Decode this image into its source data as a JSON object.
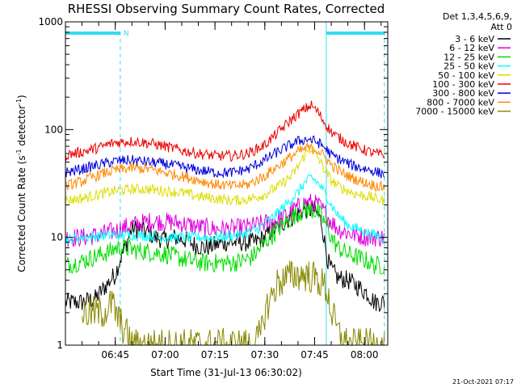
{
  "chart_data": {
    "type": "line",
    "title": "RHESSI Observing Summary Count Rates, Corrected",
    "xlabel": "Start Time (31-Jul-13 06:30:02)",
    "ylabel": "Corrected Count Rate (s⁻¹ detector⁻¹)",
    "ylabel_parts": [
      "Corrected Count Rate (s",
      "-1",
      " detector",
      "-1",
      ")"
    ],
    "x_unit": "minutes after 06:30:02",
    "x_range": [
      0,
      97
    ],
    "ylim": [
      1,
      1000
    ],
    "y_scale": "log",
    "x_ticks": [
      {
        "value": 15,
        "label": "06:45"
      },
      {
        "value": 30,
        "label": "07:00"
      },
      {
        "value": 45,
        "label": "07:15"
      },
      {
        "value": 60,
        "label": "07:30"
      },
      {
        "value": 75,
        "label": "07:45"
      },
      {
        "value": 90,
        "label": "08:00"
      }
    ],
    "y_ticks": [
      {
        "value": 1,
        "label": "1"
      },
      {
        "value": 10,
        "label": "10"
      },
      {
        "value": 100,
        "label": "100"
      },
      {
        "value": 1000,
        "label": "1000"
      }
    ],
    "legend_header": [
      "Det 1,3,4,5,6,9,",
      "Att 0"
    ],
    "legend_position": "right",
    "footer_date": "21-Oct-2021 07:17",
    "night_marker": {
      "label": "N",
      "color": "#33ddee",
      "x_start": 0,
      "x_end": 16.5
    },
    "saa_marker": {
      "color": "#33ddee",
      "x_start": 78.5,
      "x_end": 96
    },
    "series": [
      {
        "name": "3 - 6 keV",
        "color": "#000000",
        "x": [
          0,
          5,
          9,
          11,
          13,
          14,
          15,
          18,
          20,
          22,
          25,
          27,
          30,
          33,
          36,
          39,
          42,
          45,
          48,
          51,
          54,
          57,
          60,
          63,
          66,
          69,
          72,
          75,
          77,
          78,
          79,
          80,
          82,
          85,
          88,
          91,
          93,
          95,
          96
        ],
        "y": [
          2.5,
          2.5,
          2.7,
          3.2,
          3.8,
          4.2,
          4.5,
          8,
          12,
          12,
          11,
          10,
          9.5,
          10,
          9.5,
          8.5,
          8,
          8.5,
          9,
          9,
          9,
          9,
          10,
          12,
          14,
          16,
          18,
          18,
          14,
          9,
          6,
          5,
          4.2,
          4,
          3.5,
          3,
          2.5,
          2.5,
          2.5
        ]
      },
      {
        "name": "6 - 12 keV",
        "color": "#dd00dd",
        "x": [
          0,
          5,
          10,
          15,
          20,
          25,
          30,
          35,
          40,
          45,
          50,
          55,
          60,
          65,
          70,
          72,
          74,
          76,
          78,
          80,
          82,
          85,
          88,
          91,
          93,
          96
        ],
        "y": [
          10,
          10,
          10.5,
          11.5,
          13,
          14,
          14,
          13.5,
          12.5,
          12,
          12,
          12.5,
          13.5,
          15,
          19,
          21,
          21,
          20,
          17,
          14,
          12,
          11,
          10.5,
          10,
          10,
          10
        ]
      },
      {
        "name": "12 - 25 keV",
        "color": "#00dd00",
        "x": [
          0,
          5,
          10,
          14,
          15,
          18,
          22,
          26,
          30,
          34,
          38,
          42,
          46,
          50,
          53,
          56,
          58,
          60,
          63,
          66,
          69,
          72,
          74,
          76,
          78,
          80,
          82,
          85,
          88,
          91,
          93,
          96
        ],
        "y": [
          5.5,
          6,
          6.8,
          7.5,
          8,
          8,
          7.5,
          7.3,
          7,
          6.5,
          6,
          5.8,
          5.8,
          5.8,
          6,
          6.5,
          7.5,
          9,
          11,
          13.5,
          16,
          18,
          18,
          17,
          14,
          10,
          8,
          7,
          6.5,
          6,
          5.5,
          5.5
        ]
      },
      {
        "name": "25 - 50 keV",
        "color": "#00ffff",
        "x": [
          0,
          5,
          10,
          15,
          20,
          25,
          30,
          35,
          40,
          45,
          50,
          55,
          58,
          61,
          64,
          67,
          70,
          72,
          74,
          76,
          78,
          80,
          82,
          85,
          88,
          91,
          93,
          96
        ],
        "y": [
          9.5,
          10,
          10.3,
          10.5,
          10.5,
          10.3,
          10,
          10,
          10,
          10,
          10.3,
          11,
          12,
          14,
          17,
          21,
          26,
          32,
          36,
          32,
          26,
          20,
          16,
          13,
          12,
          11,
          10.5,
          10
        ]
      },
      {
        "name": "50 - 100 keV",
        "color": "#dddd00",
        "x": [
          0,
          5,
          10,
          15,
          20,
          25,
          30,
          35,
          40,
          45,
          50,
          55,
          60,
          65,
          68,
          70,
          72,
          74,
          76,
          78,
          80,
          82,
          85,
          88,
          91,
          93,
          96
        ],
        "y": [
          22,
          23,
          25,
          27,
          28,
          28,
          27,
          26,
          24,
          23,
          22,
          22.5,
          25,
          31,
          37,
          45,
          58,
          68,
          55,
          42,
          34,
          30,
          27,
          25,
          24,
          23,
          22
        ]
      },
      {
        "name": "100 - 300 keV",
        "color": "#ee0000",
        "x": [
          0,
          5,
          10,
          15,
          20,
          25,
          30,
          35,
          40,
          45,
          50,
          55,
          60,
          63,
          66,
          69,
          72,
          74,
          76,
          78,
          80,
          82,
          85,
          88,
          91,
          93,
          96
        ],
        "y": [
          58,
          62,
          68,
          76,
          78,
          75,
          70,
          64,
          60,
          57,
          57,
          60,
          72,
          88,
          108,
          132,
          155,
          168,
          145,
          115,
          95,
          85,
          75,
          68,
          63,
          60,
          58
        ]
      },
      {
        "name": "300 - 800 keV",
        "color": "#0000dd",
        "x": [
          0,
          5,
          10,
          15,
          20,
          25,
          30,
          35,
          40,
          45,
          50,
          55,
          60,
          65,
          70,
          73,
          76,
          78,
          80,
          83,
          86,
          89,
          92,
          94,
          96
        ],
        "y": [
          40,
          43,
          47,
          51,
          52,
          50,
          48,
          45,
          42,
          40,
          40,
          43,
          52,
          65,
          78,
          82,
          76,
          68,
          58,
          52,
          47,
          44,
          42,
          40,
          39
        ]
      },
      {
        "name": "800 - 7000 keV",
        "color": "#ff8800",
        "x": [
          0,
          5,
          10,
          15,
          20,
          25,
          30,
          35,
          40,
          45,
          50,
          55,
          60,
          65,
          70,
          73,
          76,
          78,
          80,
          83,
          86,
          89,
          92,
          94,
          96
        ],
        "y": [
          30,
          33,
          38,
          42,
          44,
          43,
          40,
          37,
          34,
          31,
          30,
          31,
          37,
          48,
          62,
          68,
          64,
          56,
          47,
          40,
          36,
          33,
          31,
          30,
          29
        ]
      },
      {
        "name": "7000 - 15000 keV",
        "color": "#888800",
        "x": [
          5,
          8,
          11,
          13,
          14,
          15,
          17,
          20,
          23,
          26,
          30,
          35,
          40,
          46,
          52,
          57,
          59,
          60,
          61,
          62,
          63,
          64,
          67,
          70,
          72,
          74,
          76,
          78,
          79,
          80,
          82,
          85,
          88,
          91,
          94,
          96
        ],
        "y": [
          2,
          2,
          2,
          2.2,
          2.5,
          2,
          1.5,
          1,
          1,
          1,
          1,
          1,
          1,
          1,
          1,
          1,
          1.3,
          2,
          2.4,
          2.8,
          3.3,
          3.8,
          4.3,
          4.5,
          4.5,
          4.3,
          4,
          3.5,
          3,
          2,
          1.3,
          1,
          1,
          1,
          1,
          1
        ]
      }
    ]
  }
}
